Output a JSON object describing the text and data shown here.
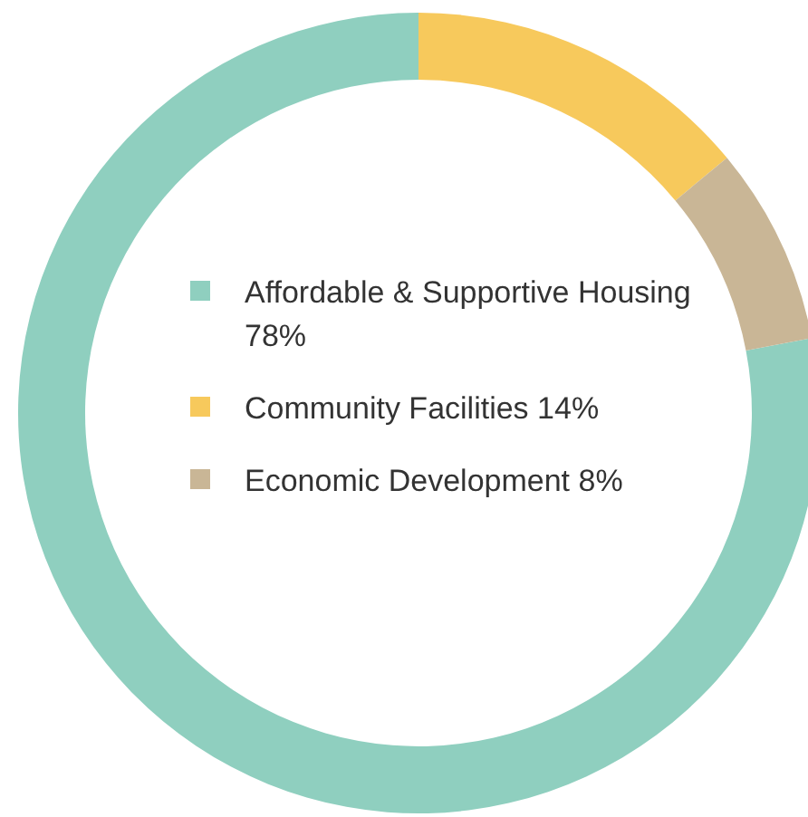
{
  "chart_data": {
    "type": "donut",
    "categories": [
      "Affordable & Supportive Housing",
      "Community Facilities",
      "Economic Development"
    ],
    "values": [
      78,
      14,
      8
    ],
    "value_labels": [
      "78%",
      "14%",
      "8%"
    ],
    "colors": [
      "#8fcfbf",
      "#f7c95c",
      "#c9b696"
    ],
    "legend": "center"
  }
}
